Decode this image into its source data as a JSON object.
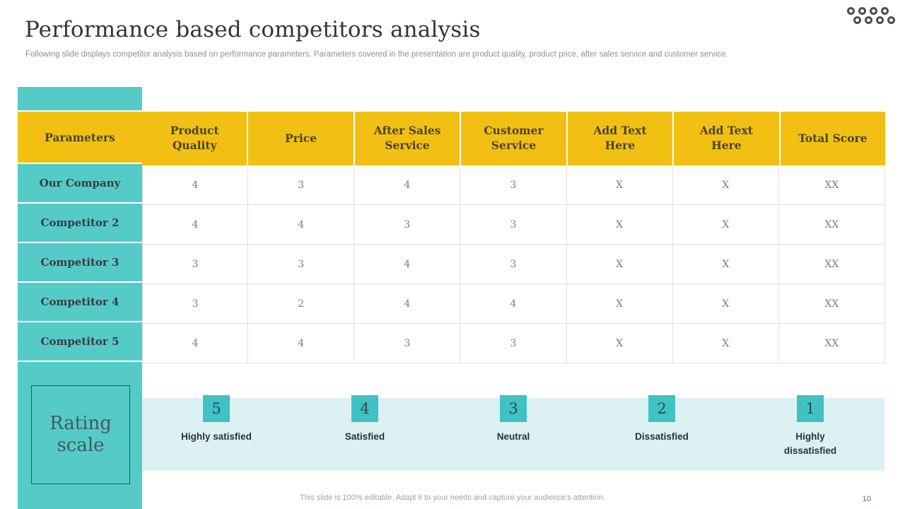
{
  "slide": {
    "title": "Performance based competitors analysis",
    "subtitle": "Following slide displays competitor analysis based on performance parameters. Parameters covered in the presentation are product quality, product price, after sales service and customer service.",
    "footer_note": "This slide is 100% editable. Adapt it to your needs and capture your audience's attention.",
    "page_number": "10"
  },
  "table": {
    "columns": [
      "Parameters",
      "Product Quality",
      "Price",
      "After Sales Service",
      "Customer Service",
      "Add Text Here",
      "Add Text Here",
      "Total Score"
    ],
    "rows": [
      {
        "label": "Our Company",
        "values": [
          "4",
          "3",
          "4",
          "3",
          "X",
          "X",
          "XX"
        ]
      },
      {
        "label": "Competitor 2",
        "values": [
          "4",
          "4",
          "3",
          "3",
          "X",
          "X",
          "XX"
        ]
      },
      {
        "label": "Competitor 3",
        "values": [
          "3",
          "3",
          "4",
          "3",
          "X",
          "X",
          "XX"
        ]
      },
      {
        "label": "Competitor 4",
        "values": [
          "3",
          "2",
          "4",
          "4",
          "X",
          "X",
          "XX"
        ]
      },
      {
        "label": "Competitor 5",
        "values": [
          "4",
          "4",
          "3",
          "3",
          "X",
          "X",
          "XX"
        ]
      }
    ]
  },
  "rating_scale": {
    "title": "Rating scale",
    "items": [
      {
        "score": "5",
        "label": "Highly satisfied"
      },
      {
        "score": "4",
        "label": "Satisfied"
      },
      {
        "score": "3",
        "label": "Neutral"
      },
      {
        "score": "2",
        "label": "Dissatisfied"
      },
      {
        "score": "1",
        "label": "Highly dissatisfied"
      }
    ]
  },
  "icons": {
    "logo": "eight-rings-logo"
  },
  "colors": {
    "teal": "#55cbc8",
    "teal_dark": "#40c1c3",
    "yellow": "#f1c013",
    "pale_strip": "#dcf1f2",
    "header_text": "#4a4528",
    "value_text": "#7c7c7c",
    "title_text": "#343434",
    "subtitle_text": "#8f8f8f",
    "footer_text": "#9aa4a6",
    "logo_gray": "#4d4d4d"
  }
}
